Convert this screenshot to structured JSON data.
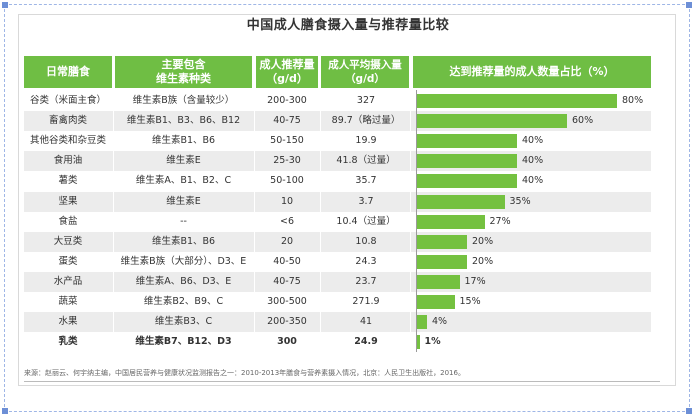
{
  "title": "中国成人膳食摄入量与推荐量比较",
  "headers": {
    "food": "日常膳食",
    "vitamins": "主要包含\n维生素种类",
    "recommended": "成人推荐量\n（g/d）",
    "average": "成人平均摄入量\n（g/d）",
    "percent": "达到推荐量的成人数量占比（%）"
  },
  "colors": {
    "header_bg": "#6fbe44",
    "bar": "#74c140",
    "row_shade": "#ececec"
  },
  "rows": [
    {
      "food": "谷类（米面主食）",
      "vitamins": "维生素B族（含量较少）",
      "recommended": "200-300",
      "average": "327",
      "percent_label": "80%"
    },
    {
      "food": "畜禽肉类",
      "vitamins": "维生素B1、B3、B6、B12",
      "recommended": "40-75",
      "average": "89.7（略过量）",
      "percent_label": "60%"
    },
    {
      "food": "其他谷类和杂豆类",
      "vitamins": "维生素B1、B6",
      "recommended": "50-150",
      "average": "19.9",
      "percent_label": "40%"
    },
    {
      "food": "食用油",
      "vitamins": "维生素E",
      "recommended": "25-30",
      "average": "41.8（过量）",
      "percent_label": "40%"
    },
    {
      "food": "薯类",
      "vitamins": "维生素A、B1、B2、C",
      "recommended": "50-100",
      "average": "35.7",
      "percent_label": "40%"
    },
    {
      "food": "坚果",
      "vitamins": "维生素E",
      "recommended": "10",
      "average": "3.7",
      "percent_label": "35%"
    },
    {
      "food": "食盐",
      "vitamins": "--",
      "recommended": "<6",
      "average": "10.4（过量）",
      "percent_label": "27%"
    },
    {
      "food": "大豆类",
      "vitamins": "维生素B1、B6",
      "recommended": "20",
      "average": "10.8",
      "percent_label": "20%"
    },
    {
      "food": "蛋类",
      "vitamins": "维生素B族（大部分）、D3、E",
      "recommended": "40-50",
      "average": "24.3",
      "percent_label": "20%"
    },
    {
      "food": "水产品",
      "vitamins": "维生素A、B6、D3、E",
      "recommended": "40-75",
      "average": "23.7",
      "percent_label": "17%"
    },
    {
      "food": "蔬菜",
      "vitamins": "维生素B2、B9、C",
      "recommended": "300-500",
      "average": "271.9",
      "percent_label": "15%"
    },
    {
      "food": "水果",
      "vitamins": "维生素B3、C",
      "recommended": "200-350",
      "average": "41",
      "percent_label": "4%"
    },
    {
      "food": "乳类",
      "vitamins": "维生素B7、B12、D3",
      "recommended": "300",
      "average": "24.9",
      "percent_label": "1%"
    }
  ],
  "chart_data": {
    "type": "bar",
    "title": "达到推荐量的成人数量占比（%）",
    "categories": [
      "谷类（米面主食）",
      "畜禽肉类",
      "其他谷类和杂豆类",
      "食用油",
      "薯类",
      "坚果",
      "食盐",
      "大豆类",
      "蛋类",
      "水产品",
      "蔬菜",
      "水果",
      "乳类"
    ],
    "values": [
      80,
      60,
      40,
      40,
      40,
      35,
      27,
      20,
      20,
      17,
      15,
      4,
      1
    ],
    "xlim": [
      0,
      100
    ]
  },
  "footer": "来源：赵丽云、何宇纳主编，中国居民营养与健康状况监测报告之一：2010-2013年膳食与营养素摄入情况，北京：人民卫生出版社，2016。"
}
